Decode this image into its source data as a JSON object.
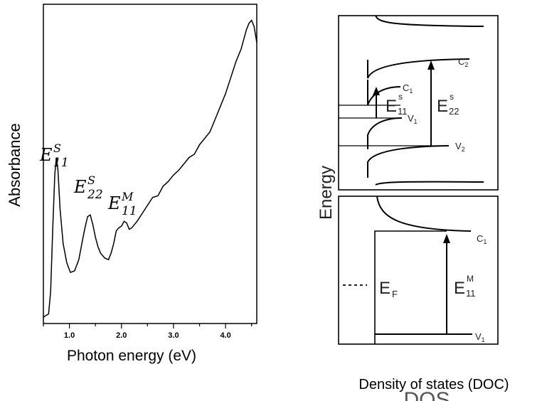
{
  "left_panel": {
    "ylabel": "Absorbance",
    "xlabel": "Photon energy (eV)",
    "peak_labels": [
      {
        "base": "E",
        "sup": "S",
        "sub": "11"
      },
      {
        "base": "E",
        "sup": "S",
        "sub": "22"
      },
      {
        "base": "E",
        "sup": "M",
        "sub": "11"
      }
    ]
  },
  "right_panel": {
    "ylabel": "Energy",
    "xlabel": "Density of states (DOC)",
    "cut_off_label": "DOS",
    "semiconducting": {
      "levels": [
        "C",
        "C",
        "V",
        "V"
      ],
      "level_subs": [
        "2",
        "1",
        "1",
        "2"
      ],
      "transitions": [
        {
          "base": "E",
          "sup": "s",
          "sub": "11"
        },
        {
          "base": "E",
          "sup": "s",
          "sub": "22"
        }
      ]
    },
    "metallic": {
      "levels": [
        "C",
        "V"
      ],
      "level_subs": [
        "1",
        "1"
      ],
      "fermi": {
        "base": "E",
        "sub": "F"
      },
      "transition": {
        "base": "E",
        "sup": "M",
        "sub": "11"
      }
    }
  },
  "chart_data": {
    "type": "line",
    "title": "",
    "xlabel": "Photon energy (eV)",
    "ylabel": "Absorbance",
    "xlim": [
      0.5,
      4.6
    ],
    "ylim": [
      0,
      1
    ],
    "xticks": [
      "1.0",
      "2.0",
      "3.0",
      "4.0"
    ],
    "grid": false,
    "series": [
      {
        "x": [
          0.5,
          0.6,
          0.64,
          0.68,
          0.72,
          0.75,
          0.78,
          0.82,
          0.88,
          0.95,
          1.02,
          1.1,
          1.18,
          1.25,
          1.3,
          1.35,
          1.4,
          1.45,
          1.5,
          1.55,
          1.6,
          1.68,
          1.75,
          1.8,
          1.85,
          1.9,
          1.95,
          2.0,
          2.05,
          2.1,
          2.15,
          2.2,
          2.25,
          2.3,
          2.4,
          2.5,
          2.6,
          2.7,
          2.8,
          2.9,
          3.0,
          3.1,
          3.2,
          3.3,
          3.4,
          3.5,
          3.6,
          3.7,
          3.8,
          3.9,
          4.0,
          4.1,
          4.2,
          4.3,
          4.35,
          4.4,
          4.45,
          4.5,
          4.55,
          4.6
        ],
        "values": [
          0.02,
          0.03,
          0.1,
          0.3,
          0.47,
          0.52,
          0.48,
          0.36,
          0.25,
          0.19,
          0.16,
          0.165,
          0.2,
          0.26,
          0.3,
          0.335,
          0.34,
          0.31,
          0.27,
          0.24,
          0.22,
          0.205,
          0.2,
          0.22,
          0.25,
          0.29,
          0.3,
          0.305,
          0.32,
          0.315,
          0.295,
          0.3,
          0.31,
          0.32,
          0.345,
          0.37,
          0.395,
          0.4,
          0.43,
          0.445,
          0.465,
          0.48,
          0.5,
          0.52,
          0.53,
          0.56,
          0.58,
          0.6,
          0.64,
          0.68,
          0.72,
          0.77,
          0.82,
          0.86,
          0.89,
          0.92,
          0.94,
          0.95,
          0.93,
          0.88
        ]
      }
    ]
  }
}
